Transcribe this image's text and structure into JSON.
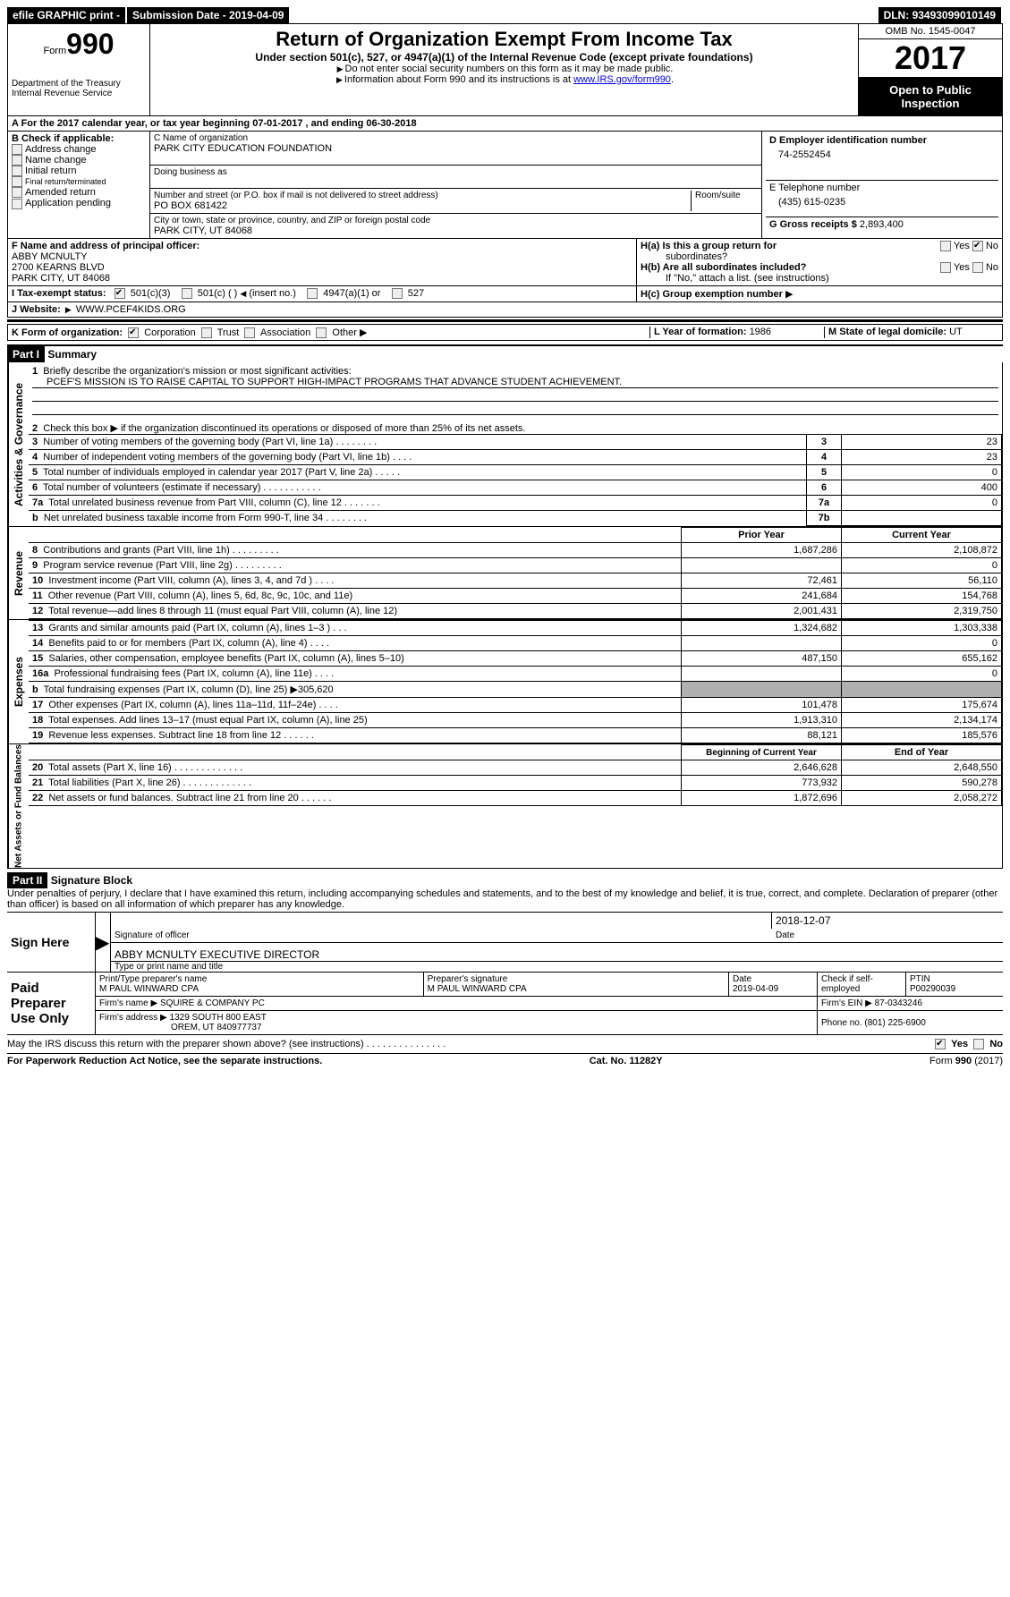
{
  "topbar": {
    "efile": "efile GRAPHIC print -",
    "submission_label": "Submission Date - ",
    "submission_date": "2019-04-09",
    "dln_label": "DLN: ",
    "dln": "93493099010149"
  },
  "header": {
    "form_label": "Form",
    "form_number": "990",
    "dept1": "Department of the Treasury",
    "dept2": "Internal Revenue Service",
    "title": "Return of Organization Exempt From Income Tax",
    "subtitle": "Under section 501(c), 527, or 4947(a)(1) of the Internal Revenue Code (except private foundations)",
    "note1": "Do not enter social security numbers on this form as it may be made public.",
    "note2_prefix": "Information about Form 990 and its instructions is at ",
    "note2_link": "www.IRS.gov/form990",
    "omb": "OMB No. 1545-0047",
    "year": "2017",
    "open": "Open to Public Inspection"
  },
  "sectionA": {
    "text_prefix": "A  For the 2017 calendar year, or tax year beginning ",
    "begin": "07-01-2017",
    "mid": "  , and ending ",
    "end": "06-30-2018"
  },
  "sectionB": {
    "label": "B Check if applicable:",
    "items": [
      "Address change",
      "Name change",
      "Initial return",
      "Final return/terminated",
      "Amended return",
      "Application pending"
    ]
  },
  "sectionC": {
    "name_label": "C Name of organization",
    "name": "PARK CITY EDUCATION FOUNDATION",
    "dba_label": "Doing business as",
    "dba": "",
    "addr_label": "Number and street (or P.O. box if mail is not delivered to street address)",
    "room_label": "Room/suite",
    "addr": "PO BOX 681422",
    "city_label": "City or town, state or province, country, and ZIP or foreign postal code",
    "city": "PARK CITY, UT  84068"
  },
  "sectionD": {
    "label": "D Employer identification number",
    "value": "74-2552454"
  },
  "sectionE": {
    "label": "E Telephone number",
    "value": "(435) 615-0235"
  },
  "sectionG": {
    "label": "G Gross receipts $ ",
    "value": "2,893,400"
  },
  "sectionF": {
    "label": "F  Name and address of principal officer:",
    "line1": "ABBY MCNULTY",
    "line2": "2700 KEARNS BLVD",
    "line3": "PARK CITY, UT  84068"
  },
  "sectionH": {
    "a_label": "H(a)  Is this a group return for",
    "a_sub": "subordinates?",
    "b_label": "H(b)  Are all subordinates included?",
    "b_note": "If \"No,\" attach a list. (see instructions)",
    "c_label": "H(c)  Group exemption number",
    "yes": "Yes",
    "no": "No"
  },
  "sectionI": {
    "label": "I  Tax-exempt status:",
    "opt1": "501(c)(3)",
    "opt2": "501(c) (  )",
    "opt2_note": "(insert no.)",
    "opt3": "4947(a)(1) or",
    "opt4": "527"
  },
  "sectionJ": {
    "label": "J  Website:",
    "value": "WWW.PCEF4KIDS.ORG"
  },
  "sectionK": {
    "label": "K Form of organization:",
    "opts": [
      "Corporation",
      "Trust",
      "Association",
      "Other"
    ]
  },
  "sectionL": {
    "label": "L Year of formation: ",
    "value": "1986"
  },
  "sectionM": {
    "label": "M State of legal domicile: ",
    "value": "UT"
  },
  "part1": {
    "header": "Part I",
    "title": "Summary",
    "q1": "Briefly describe the organization's mission or most significant activities:",
    "mission": "PCEF'S MISSION IS TO RAISE CAPITAL TO SUPPORT HIGH-IMPACT PROGRAMS THAT ADVANCE STUDENT ACHIEVEMENT.",
    "q2": "Check this box ▶       if the organization discontinued its operations or disposed of more than 25% of its net assets.",
    "governance_label": "Activities & Governance",
    "revenue_label": "Revenue",
    "expenses_label": "Expenses",
    "netassets_label": "Net Assets or Fund Balances",
    "lines_gov": [
      {
        "n": "3",
        "d": "Number of voting members of the governing body (Part VI, line 1a)   .    .    .    .    .    .    .    .",
        "ln": "3",
        "v": "23"
      },
      {
        "n": "4",
        "d": "Number of independent voting members of the governing body (Part VI, line 1b)    .    .    .    .",
        "ln": "4",
        "v": "23"
      },
      {
        "n": "5",
        "d": "Total number of individuals employed in calendar year 2017 (Part V, line 2a)    .    .    .    .    .",
        "ln": "5",
        "v": "0"
      },
      {
        "n": "6",
        "d": "Total number of volunteers (estimate if necessary)    .    .    .    .    .    .    .    .    .    .    .",
        "ln": "6",
        "v": "400"
      },
      {
        "n": "7a",
        "d": "Total unrelated business revenue from Part VIII, column (C), line 12    .    .    .    .    .    .    .",
        "ln": "7a",
        "v": "0"
      },
      {
        "n": "b",
        "d": "Net unrelated business taxable income from Form 990-T, line 34    .    .    .    .    .    .    .    .",
        "ln": "7b",
        "v": ""
      }
    ],
    "col_prior": "Prior Year",
    "col_current": "Current Year",
    "col_begin": "Beginning of Current Year",
    "col_end": "End of Year",
    "lines_rev": [
      {
        "n": "8",
        "d": "Contributions and grants (Part VIII, line 1h)    .    .    .    .    .    .    .    .    .",
        "p": "1,687,286",
        "c": "2,108,872"
      },
      {
        "n": "9",
        "d": "Program service revenue (Part VIII, line 2g)    .    .    .    .    .    .    .    .    .",
        "p": "",
        "c": "0"
      },
      {
        "n": "10",
        "d": "Investment income (Part VIII, column (A), lines 3, 4, and 7d )    .    .    .    .",
        "p": "72,461",
        "c": "56,110"
      },
      {
        "n": "11",
        "d": "Other revenue (Part VIII, column (A), lines 5, 6d, 8c, 9c, 10c, and 11e)",
        "p": "241,684",
        "c": "154,768"
      },
      {
        "n": "12",
        "d": "Total revenue—add lines 8 through 11 (must equal Part VIII, column (A), line 12)",
        "p": "2,001,431",
        "c": "2,319,750"
      }
    ],
    "lines_exp": [
      {
        "n": "13",
        "d": "Grants and similar amounts paid (Part IX, column (A), lines 1–3 )    .    .    .",
        "p": "1,324,682",
        "c": "1,303,338"
      },
      {
        "n": "14",
        "d": "Benefits paid to or for members (Part IX, column (A), line 4)    .    .    .    .",
        "p": "",
        "c": "0"
      },
      {
        "n": "15",
        "d": "Salaries, other compensation, employee benefits (Part IX, column (A), lines 5–10)",
        "p": "487,150",
        "c": "655,162"
      },
      {
        "n": "16a",
        "d": "Professional fundraising fees (Part IX, column (A), line 11e)    .    .    .    .",
        "p": "",
        "c": "0"
      },
      {
        "n": "b",
        "d": "Total fundraising expenses (Part IX, column (D), line 25) ▶305,620",
        "p": "shade",
        "c": "shade"
      },
      {
        "n": "17",
        "d": "Other expenses (Part IX, column (A), lines 11a–11d, 11f–24e)    .    .    .    .",
        "p": "101,478",
        "c": "175,674"
      },
      {
        "n": "18",
        "d": "Total expenses. Add lines 13–17 (must equal Part IX, column (A), line 25)",
        "p": "1,913,310",
        "c": "2,134,174"
      },
      {
        "n": "19",
        "d": "Revenue less expenses. Subtract line 18 from line 12    .    .    .    .    .    .",
        "p": "88,121",
        "c": "185,576"
      }
    ],
    "lines_net": [
      {
        "n": "20",
        "d": "Total assets (Part X, line 16)    .    .    .    .    .    .    .    .    .    .    .    .    .",
        "p": "2,646,628",
        "c": "2,648,550"
      },
      {
        "n": "21",
        "d": "Total liabilities (Part X, line 26)    .    .    .    .    .    .    .    .    .    .    .    .    .",
        "p": "773,932",
        "c": "590,278"
      },
      {
        "n": "22",
        "d": "Net assets or fund balances. Subtract line 21 from line 20 .    .    .    .    .    .",
        "p": "1,872,696",
        "c": "2,058,272"
      }
    ]
  },
  "part2": {
    "header": "Part II",
    "title": "Signature Block",
    "perjury": "Under penalties of perjury, I declare that I have examined this return, including accompanying schedules and statements, and to the best of my knowledge and belief, it is true, correct, and complete. Declaration of preparer (other than officer) is based on all information of which preparer has any knowledge.",
    "sign_here": "Sign Here",
    "sig_officer": "Signature of officer",
    "sig_date": "2018-12-07",
    "date_label": "Date",
    "officer_name": "ABBY MCNULTY EXECUTIVE DIRECTOR",
    "type_name": "Type or print name and title",
    "paid_label": "Paid Preparer Use Only",
    "prep_name_label": "Print/Type preparer's name",
    "prep_name": "M PAUL WINWARD CPA",
    "prep_sig_label": "Preparer's signature",
    "prep_sig": "M PAUL WINWARD CPA",
    "prep_date_label": "Date",
    "prep_date": "2019-04-09",
    "prep_check": "Check       if self-employed",
    "ptin_label": "PTIN",
    "ptin": "P00290039",
    "firm_name_label": "Firm's name      ▶",
    "firm_name": "SQUIRE & COMPANY PC",
    "firm_ein_label": "Firm's EIN ▶",
    "firm_ein": "87-0343246",
    "firm_addr_label": "Firm's address ▶",
    "firm_addr1": "1329 SOUTH 800 EAST",
    "firm_addr2": "OREM, UT  840977737",
    "phone_label": "Phone no. ",
    "phone": "(801) 225-6900",
    "discuss": "May the IRS discuss this return with the preparer shown above? (see instructions)    .    .    .    .    .    .    .    .    .    .    .    .    .    .    ."
  },
  "footer": {
    "left": "For Paperwork Reduction Act Notice, see the separate instructions.",
    "center": "Cat. No. 11282Y",
    "right": "Form 990 (2017)"
  }
}
